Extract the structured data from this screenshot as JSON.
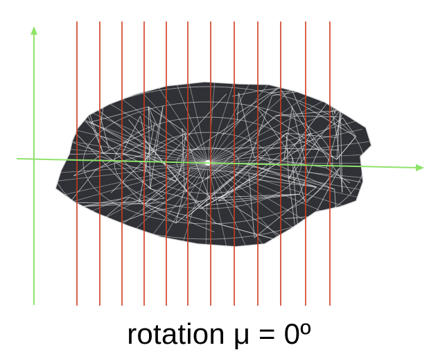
{
  "caption": "rotation μ = 0º",
  "colors": {
    "background": "#ffffff",
    "body_fill": "#2f3136",
    "mesh_lines": "#e8e8e8",
    "axis_lines": "#8fe36a",
    "slice_lines": "#cc3b1f",
    "caption_text": "#000000"
  },
  "slices": {
    "count": 12
  },
  "icons": {
    "axes": "coordinate-axes",
    "object": "wireframe-mesh"
  }
}
